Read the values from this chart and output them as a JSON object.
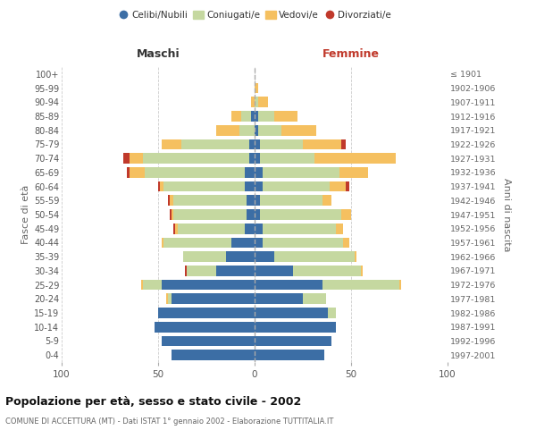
{
  "age_groups": [
    "0-4",
    "5-9",
    "10-14",
    "15-19",
    "20-24",
    "25-29",
    "30-34",
    "35-39",
    "40-44",
    "45-49",
    "50-54",
    "55-59",
    "60-64",
    "65-69",
    "70-74",
    "75-79",
    "80-84",
    "85-89",
    "90-94",
    "95-99",
    "100+"
  ],
  "birth_years": [
    "1997-2001",
    "1992-1996",
    "1987-1991",
    "1982-1986",
    "1977-1981",
    "1972-1976",
    "1967-1971",
    "1962-1966",
    "1957-1961",
    "1952-1956",
    "1947-1951",
    "1942-1946",
    "1937-1941",
    "1932-1936",
    "1927-1931",
    "1922-1926",
    "1917-1921",
    "1912-1916",
    "1907-1911",
    "1902-1906",
    "≤ 1901"
  ],
  "colors": {
    "celibe": "#3c6ea5",
    "coniugato": "#c5d8a0",
    "vedovo": "#f5c060",
    "divorziato": "#c0392b"
  },
  "maschi": {
    "celibe": [
      43,
      48,
      52,
      50,
      43,
      48,
      20,
      15,
      12,
      5,
      4,
      4,
      5,
      5,
      3,
      3,
      0,
      2,
      0,
      0,
      0
    ],
    "coniugato": [
      0,
      0,
      0,
      0,
      2,
      10,
      15,
      22,
      35,
      35,
      38,
      38,
      42,
      52,
      55,
      35,
      8,
      5,
      0,
      0,
      0
    ],
    "vedovo": [
      0,
      0,
      0,
      0,
      1,
      1,
      0,
      0,
      1,
      1,
      1,
      2,
      2,
      8,
      7,
      10,
      12,
      5,
      2,
      0,
      0
    ],
    "divorziato": [
      0,
      0,
      0,
      0,
      0,
      0,
      1,
      0,
      0,
      1,
      1,
      1,
      1,
      1,
      3,
      0,
      0,
      0,
      0,
      0,
      0
    ]
  },
  "femmine": {
    "nubile": [
      36,
      40,
      42,
      38,
      25,
      35,
      20,
      10,
      4,
      4,
      3,
      3,
      4,
      4,
      3,
      3,
      2,
      2,
      0,
      0,
      0
    ],
    "coniugata": [
      0,
      0,
      0,
      4,
      12,
      40,
      35,
      42,
      42,
      38,
      42,
      32,
      35,
      40,
      28,
      22,
      12,
      8,
      2,
      0,
      0
    ],
    "vedova": [
      0,
      0,
      0,
      0,
      0,
      1,
      1,
      1,
      3,
      4,
      5,
      5,
      8,
      15,
      42,
      20,
      18,
      12,
      5,
      2,
      0
    ],
    "divorziata": [
      0,
      0,
      0,
      0,
      0,
      0,
      0,
      0,
      0,
      0,
      0,
      0,
      2,
      0,
      0,
      2,
      0,
      0,
      0,
      0,
      0
    ]
  },
  "xlim": 100,
  "title": "Popolazione per età, sesso e stato civile - 2002",
  "subtitle": "COMUNE DI ACCETTURA (MT) - Dati ISTAT 1° gennaio 2002 - Elaborazione TUTTITALIA.IT",
  "ylabel_left": "Fasce di età",
  "ylabel_right": "Anni di nascita",
  "xlabel_maschi": "Maschi",
  "xlabel_femmine": "Femmine",
  "background_color": "#ffffff",
  "grid_color": "#cccccc",
  "bar_height": 0.75,
  "legend_labels": [
    "Celibi/Nubili",
    "Coniugati/e",
    "Vedovi/e",
    "Divorziati/e"
  ]
}
